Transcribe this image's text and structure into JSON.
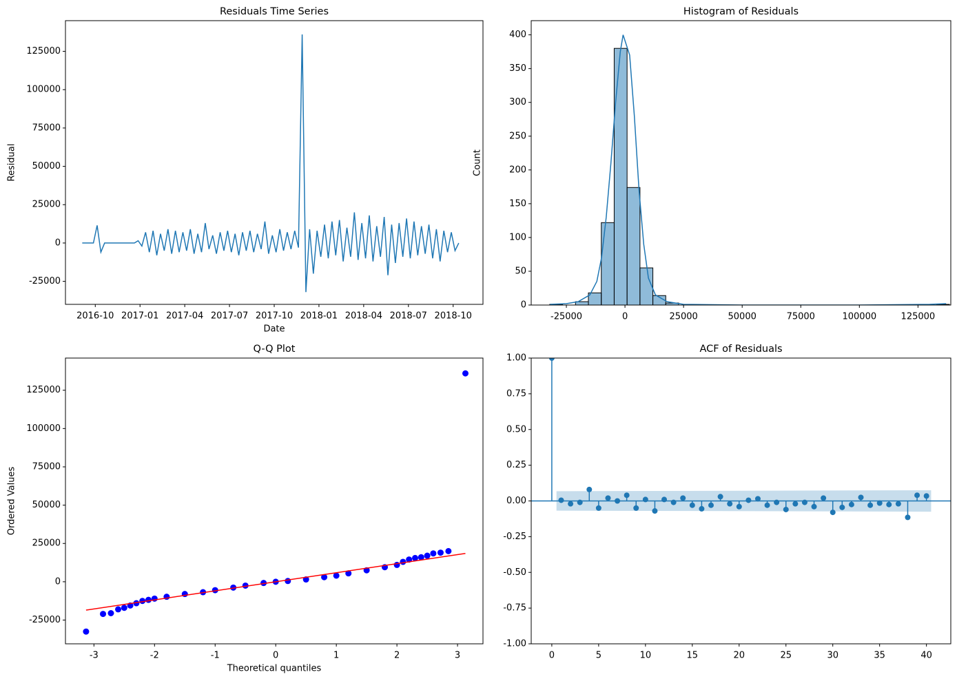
{
  "chart_data": [
    {
      "type": "line",
      "title": "Residuals Time Series",
      "xlabel": "Date",
      "ylabel": "Residual",
      "xlim": [
        "2016-08",
        "2018-12"
      ],
      "xticks": [
        "2016-10",
        "2017-01",
        "2017-04",
        "2017-07",
        "2017-10",
        "2018-01",
        "2018-04",
        "2018-07",
        "2018-10"
      ],
      "ylim": [
        -40000,
        145000
      ],
      "yticks": [
        -25000,
        0,
        25000,
        50000,
        75000,
        100000,
        125000
      ],
      "x": [
        "2016-09",
        "2016-09",
        "2016-09",
        "2016-09",
        "2016-10",
        "2016-10",
        "2016-10",
        "2016-10",
        "2016-11",
        "2016-11",
        "2016-11",
        "2016-11",
        "2016-12",
        "2016-12",
        "2016-12",
        "2016-12",
        "2017-01",
        "2017-01",
        "2017-01",
        "2017-01",
        "2017-02",
        "2017-02",
        "2017-02",
        "2017-02",
        "2017-03",
        "2017-03",
        "2017-03",
        "2017-03",
        "2017-04",
        "2017-04",
        "2017-04",
        "2017-04",
        "2017-05",
        "2017-05",
        "2017-05",
        "2017-05",
        "2017-06",
        "2017-06",
        "2017-06",
        "2017-06",
        "2017-07",
        "2017-07",
        "2017-07",
        "2017-07",
        "2017-08",
        "2017-08",
        "2017-08",
        "2017-08",
        "2017-09",
        "2017-09",
        "2017-09",
        "2017-09",
        "2017-10",
        "2017-10",
        "2017-10",
        "2017-10",
        "2017-11",
        "2017-11",
        "2017-11",
        "2017-11",
        "2017-12",
        "2017-12",
        "2017-12",
        "2017-12",
        "2018-01",
        "2018-01",
        "2018-01",
        "2018-01",
        "2018-02",
        "2018-02",
        "2018-02",
        "2018-02",
        "2018-03",
        "2018-03",
        "2018-03",
        "2018-03",
        "2018-04",
        "2018-04",
        "2018-04",
        "2018-04",
        "2018-05",
        "2018-05",
        "2018-05",
        "2018-05",
        "2018-06",
        "2018-06",
        "2018-06",
        "2018-06",
        "2018-07",
        "2018-07",
        "2018-07",
        "2018-07",
        "2018-08",
        "2018-08",
        "2018-08",
        "2018-08",
        "2018-09",
        "2018-09",
        "2018-09",
        "2018-09",
        "2018-10",
        "2018-10"
      ],
      "series": [
        {
          "color": "#1f77b4",
          "values": [
            0,
            0,
            0,
            0,
            11500,
            -6000,
            0,
            0,
            0,
            0,
            0,
            0,
            0,
            0,
            0,
            1500,
            -2000,
            7000,
            -6000,
            8000,
            -8000,
            6000,
            -5000,
            9000,
            -7000,
            8000,
            -6000,
            7000,
            -5000,
            9000,
            -7000,
            6000,
            -6000,
            13000,
            -4000,
            5000,
            -7000,
            7000,
            -5000,
            8000,
            -6000,
            6000,
            -8000,
            7000,
            -5000,
            8000,
            -6000,
            6000,
            -4000,
            14000,
            -7000,
            5000,
            -6000,
            9000,
            -5000,
            7000,
            -4000,
            8000,
            -3000,
            136000,
            -32000,
            9000,
            -20000,
            8000,
            -9000,
            12000,
            -10000,
            14000,
            -8000,
            15000,
            -12000,
            10000,
            -9000,
            20000,
            -11000,
            13000,
            -10000,
            18000,
            -12000,
            11000,
            -9000,
            17000,
            -21000,
            12000,
            -13000,
            13000,
            -9000,
            16000,
            -10000,
            14000,
            -8000,
            11000,
            -7000,
            12000,
            -10000,
            9000,
            -12000,
            8000,
            -6000,
            7000,
            -5000,
            0
          ]
        }
      ]
    },
    {
      "type": "histogram",
      "title": "Histogram of Residuals",
      "ylabel": "Count",
      "xlim": [
        -40000,
        139000
      ],
      "xticks": [
        -25000,
        0,
        25000,
        50000,
        75000,
        100000,
        125000
      ],
      "ylim": [
        0,
        421
      ],
      "yticks": [
        0,
        50,
        100,
        150,
        200,
        250,
        300,
        350,
        400
      ],
      "color": "#1f77b4",
      "bins": [
        -32100,
        -26600,
        -21100,
        -15600,
        -10100,
        -4600,
        900,
        6400,
        11900,
        17400,
        22900,
        28400,
        33900,
        39400,
        44900,
        50400,
        55900,
        61400,
        66900,
        72400,
        77900,
        83400,
        88900,
        94400,
        99900,
        105400,
        110900,
        116400,
        121900,
        127400,
        132900,
        138400
      ],
      "counts": [
        1,
        0,
        5,
        18,
        122,
        380,
        174,
        55,
        14,
        3,
        0,
        0,
        0,
        0,
        0,
        0,
        0,
        0,
        0,
        0,
        0,
        0,
        0,
        0,
        0,
        0,
        0,
        0,
        0,
        0,
        1
      ],
      "kde": {
        "x": [
          -32000,
          -25000,
          -20000,
          -15000,
          -12000,
          -10000,
          -8000,
          -6000,
          -4000,
          -2000,
          -800,
          2000,
          4000,
          6000,
          8000,
          10000,
          13000,
          18000,
          25000,
          50000,
          100000,
          130000,
          137000
        ],
        "values": [
          1,
          2,
          5,
          15,
          35,
          70,
          130,
          210,
          300,
          375,
          400,
          370,
          280,
          170,
          90,
          40,
          15,
          5,
          1,
          0,
          0,
          1,
          2
        ]
      }
    },
    {
      "type": "scatter",
      "title": "Q-Q Plot",
      "xlabel": "Theoretical quantiles",
      "ylabel": "Ordered Values",
      "xlim": [
        -3.47,
        3.42
      ],
      "xticks": [
        -3,
        -2,
        -1,
        0,
        1,
        2,
        3
      ],
      "ylim": [
        -40500,
        146000
      ],
      "yticks": [
        -25000,
        0,
        25000,
        50000,
        75000,
        100000,
        125000
      ],
      "color": "blue",
      "x": [
        -3.13,
        -2.85,
        -2.72,
        -2.6,
        -2.5,
        -2.4,
        -2.3,
        -2.2,
        -2.1,
        -2,
        -1.8,
        -1.5,
        -1.2,
        -1,
        -0.7,
        -0.5,
        -0.2,
        0,
        0.2,
        0.5,
        0.8,
        1,
        1.2,
        1.5,
        1.8,
        2,
        2.1,
        2.2,
        2.3,
        2.4,
        2.5,
        2.6,
        2.72,
        2.85,
        3.13
      ],
      "values": [
        -32500,
        -21000,
        -20500,
        -18000,
        -17000,
        -15500,
        -14000,
        -12500,
        -11800,
        -11000,
        -9800,
        -8000,
        -6800,
        -5500,
        -3800,
        -2500,
        -800,
        0,
        500,
        1500,
        3000,
        4000,
        5500,
        7500,
        9500,
        11000,
        13000,
        14500,
        15500,
        16000,
        17000,
        18500,
        19000,
        20000,
        136000
      ],
      "fit_line": {
        "color": "red",
        "x": [
          -3.13,
          3.13
        ],
        "values": [
          -18500,
          18500
        ]
      }
    },
    {
      "type": "stem",
      "title": "ACF of Residuals",
      "xlim": [
        -2.2,
        42.6
      ],
      "xticks": [
        0,
        5,
        10,
        15,
        20,
        25,
        30,
        35,
        40
      ],
      "ylim": [
        -1,
        1
      ],
      "yticks": [
        {
          "value": -1,
          "label": "-1.00"
        },
        {
          "value": -0.75,
          "label": "-0.75"
        },
        {
          "value": -0.5,
          "label": "-0.50"
        },
        {
          "value": -0.25,
          "label": "-0.25"
        },
        {
          "value": 0,
          "label": "0.00"
        },
        {
          "value": 0.25,
          "label": "0.25"
        },
        {
          "value": 0.5,
          "label": "0.50"
        },
        {
          "value": 0.75,
          "label": "0.75"
        },
        {
          "value": 1,
          "label": "1.00"
        }
      ],
      "color": "#1f77b4",
      "lags": [
        0,
        1,
        2,
        3,
        4,
        5,
        6,
        7,
        8,
        9,
        10,
        11,
        12,
        13,
        14,
        15,
        16,
        17,
        18,
        19,
        20,
        21,
        22,
        23,
        24,
        25,
        26,
        27,
        28,
        29,
        30,
        31,
        32,
        33,
        34,
        35,
        36,
        37,
        38,
        39,
        40
      ],
      "values": [
        1,
        0.005,
        -0.02,
        -0.01,
        0.08,
        -0.05,
        0.02,
        0,
        0.04,
        -0.05,
        0.01,
        -0.07,
        0.01,
        -0.01,
        0.02,
        -0.03,
        -0.055,
        -0.03,
        0.03,
        -0.02,
        -0.04,
        0.005,
        0.015,
        -0.03,
        -0.01,
        -0.06,
        -0.02,
        -0.01,
        -0.04,
        0.02,
        -0.08,
        -0.045,
        -0.025,
        0.025,
        -0.03,
        -0.015,
        -0.025,
        -0.02,
        -0.115,
        0.04,
        0.035
      ],
      "band": {
        "x": [
          0.5,
          40.5
        ],
        "upper": [
          0.068,
          0.075
        ],
        "lower": [
          -0.068,
          -0.075
        ]
      }
    }
  ]
}
